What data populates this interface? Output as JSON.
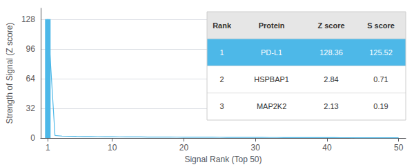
{
  "chart_data": {
    "type": "line",
    "xlabel": "Signal Rank (Top 50)",
    "ylabel": "Strength of Signal (Z score)",
    "x": [
      1,
      2,
      3,
      4,
      5,
      6,
      7,
      8,
      9,
      10,
      11,
      12,
      13,
      14,
      15,
      16,
      17,
      18,
      19,
      20,
      21,
      22,
      23,
      24,
      25,
      26,
      27,
      28,
      29,
      30,
      31,
      32,
      33,
      34,
      35,
      36,
      37,
      38,
      39,
      40,
      41,
      42,
      43,
      44,
      45,
      46,
      47,
      48,
      49,
      50
    ],
    "series": [
      {
        "type": "bar",
        "values": [
          128.36,
          null,
          null,
          null,
          null,
          null,
          null,
          null,
          null,
          null,
          null,
          null,
          null,
          null,
          null,
          null,
          null,
          null,
          null,
          null,
          null,
          null,
          null,
          null,
          null,
          null,
          null,
          null,
          null,
          null,
          null,
          null,
          null,
          null,
          null,
          null,
          null,
          null,
          null,
          null,
          null,
          null,
          null,
          null,
          null,
          null,
          null,
          null,
          null,
          null
        ]
      },
      {
        "type": "line",
        "values": [
          128.36,
          2.84,
          2.13,
          1.95,
          1.82,
          1.71,
          1.63,
          1.55,
          1.48,
          1.42,
          1.36,
          1.31,
          1.26,
          1.21,
          1.17,
          1.13,
          1.09,
          1.05,
          1.01,
          0.98,
          0.94,
          0.91,
          0.88,
          0.85,
          0.82,
          0.79,
          0.77,
          0.74,
          0.72,
          0.69,
          0.67,
          0.65,
          0.63,
          0.61,
          0.59,
          0.57,
          0.55,
          0.53,
          0.51,
          0.49,
          0.47,
          0.46,
          0.44,
          0.42,
          0.41,
          0.39,
          0.38,
          0.36,
          0.35,
          0.33
        ]
      }
    ],
    "color": "#4db8e8",
    "xlim": [
      0,
      51
    ],
    "xticks": [
      1,
      10,
      20,
      30,
      40,
      50
    ],
    "ylim": [
      0,
      140
    ],
    "yticks": [
      0,
      32,
      64,
      96,
      128
    ],
    "grid": true,
    "table": [
      [
        "Rank",
        "Protein",
        "Z score",
        "S score"
      ],
      [
        "1",
        "PD-L1",
        "128.36",
        "125.52"
      ],
      [
        "2",
        "HSPBAP1",
        "2.84",
        "0.71"
      ],
      [
        "3",
        "MAP2K2",
        "2.13",
        "0.19"
      ]
    ]
  }
}
